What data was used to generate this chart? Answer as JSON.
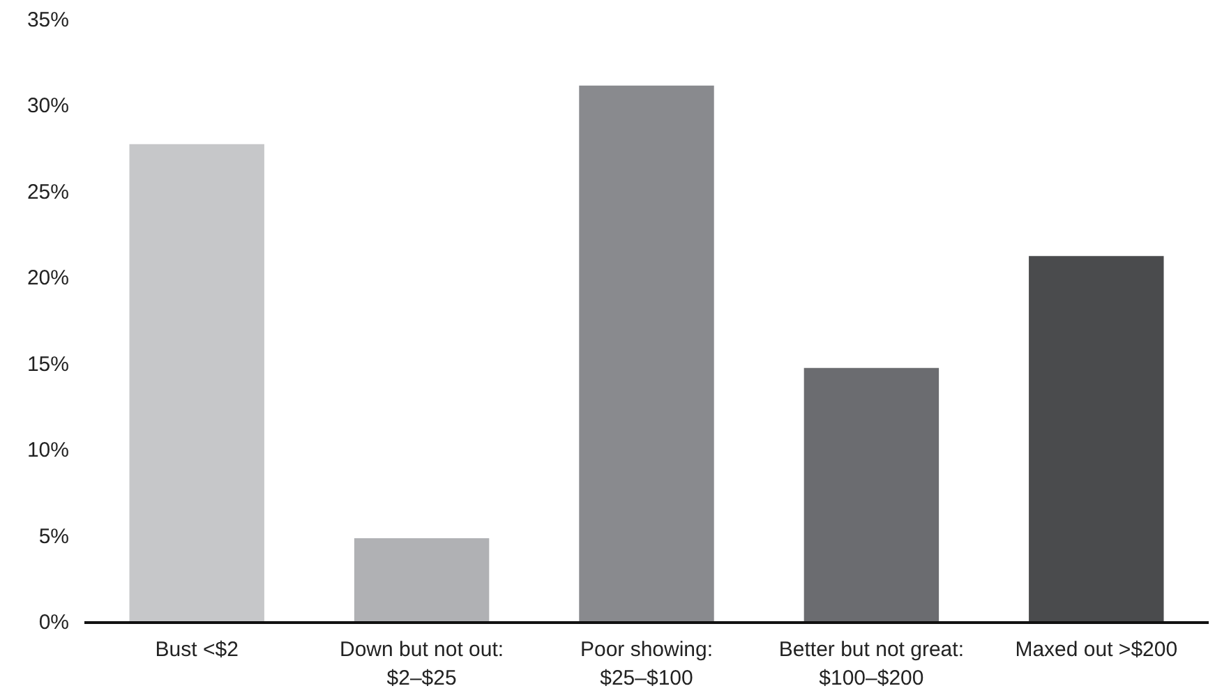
{
  "chart_data": {
    "type": "bar",
    "categories": [
      "Bust <$2",
      "Down but not out:\n$2–$25",
      "Poor showing:\n$25–$100",
      "Better but not great:\n$100–$200",
      "Maxed out >$200"
    ],
    "values": [
      27.8,
      4.9,
      31.2,
      14.8,
      21.3
    ],
    "colors": [
      "#c6c7c9",
      "#b0b1b4",
      "#898a8e",
      "#6b6c70",
      "#4a4b4d"
    ],
    "ylim": [
      0,
      35
    ],
    "yticks": [
      {
        "value": 0,
        "label": "0%"
      },
      {
        "value": 5,
        "label": "5%"
      },
      {
        "value": 10,
        "label": "10%"
      },
      {
        "value": 15,
        "label": "15%"
      },
      {
        "value": 20,
        "label": "20%"
      },
      {
        "value": 25,
        "label": "25%"
      },
      {
        "value": 30,
        "label": "30%"
      },
      {
        "value": 35,
        "label": "35%"
      }
    ],
    "grid": false
  }
}
